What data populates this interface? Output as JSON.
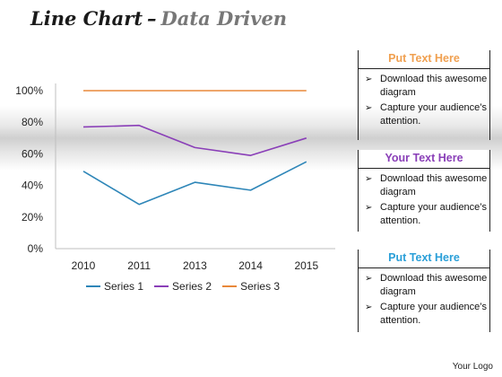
{
  "slide": {
    "title_main": "Line Chart",
    "title_dash": "–",
    "title_sub": "Data Driven",
    "logo": "Your Logo"
  },
  "chart_data": {
    "type": "line",
    "categories": [
      "2010",
      "2011",
      "2013",
      "2014",
      "2015"
    ],
    "series": [
      {
        "name": "Series 1",
        "values": [
          49,
          28,
          42,
          37,
          55
        ],
        "color": "#2e86b8"
      },
      {
        "name": "Series 2",
        "values": [
          77,
          78,
          64,
          59,
          70
        ],
        "color": "#8a3fb8"
      },
      {
        "name": "Series 3",
        "values": [
          100,
          100,
          100,
          100,
          100
        ],
        "color": "#e8883a"
      }
    ],
    "yticks": [
      "0%",
      "20%",
      "40%",
      "60%",
      "80%",
      "100%"
    ],
    "ylim": [
      0,
      100
    ],
    "legend_position": "bottom"
  },
  "panels": [
    {
      "heading": "Put Text Here",
      "color": "#f0a050",
      "bullets": [
        "Download this awesome diagram",
        "Capture your audience’s attention."
      ]
    },
    {
      "heading": "Your Text Here",
      "color": "#8a3fb8",
      "bullets": [
        "Download this awesome diagram",
        "Capture your audience’s attention."
      ]
    },
    {
      "heading": "Put Text Here",
      "color": "#2a9fd8",
      "bullets": [
        "Download this awesome diagram",
        "Capture your audience’s attention."
      ]
    }
  ]
}
